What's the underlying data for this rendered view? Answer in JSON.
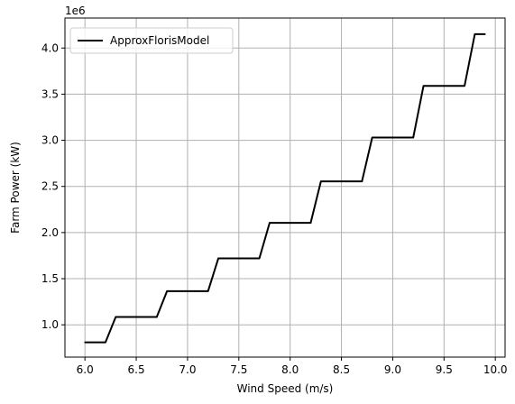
{
  "chart_data": {
    "type": "line",
    "xlabel": "Wind Speed (m/s)",
    "ylabel": "Farm Power (kW)",
    "y_offset_label": "1e6",
    "xlim": [
      5.805,
      10.095
    ],
    "ylim": [
      650000,
      4325000
    ],
    "x_ticks": [
      6.0,
      6.5,
      7.0,
      7.5,
      8.0,
      8.5,
      9.0,
      9.5,
      10.0
    ],
    "x_tick_labels": [
      "6.0",
      "6.5",
      "7.0",
      "7.5",
      "8.0",
      "8.5",
      "9.0",
      "9.5",
      "10.0"
    ],
    "y_ticks": [
      1000000,
      1500000,
      2000000,
      2500000,
      3000000,
      3500000,
      4000000
    ],
    "y_tick_labels": [
      "1.0",
      "1.5",
      "2.0",
      "2.5",
      "3.0",
      "3.5",
      "4.0"
    ],
    "grid": true,
    "legend_position": "top-left",
    "series": [
      {
        "name": "ApproxFlorisModel",
        "color": "#000000",
        "x": [
          6.0,
          6.2,
          6.3,
          6.7,
          6.8,
          7.2,
          7.3,
          7.7,
          7.8,
          8.2,
          8.3,
          8.7,
          8.8,
          9.2,
          9.3,
          9.7,
          9.8,
          9.9
        ],
        "y": [
          810000,
          810000,
          1085000,
          1085000,
          1365000,
          1365000,
          1720000,
          1720000,
          2105000,
          2105000,
          2555000,
          2555000,
          3030000,
          3030000,
          3590000,
          3590000,
          4150000,
          4150000
        ]
      }
    ]
  }
}
